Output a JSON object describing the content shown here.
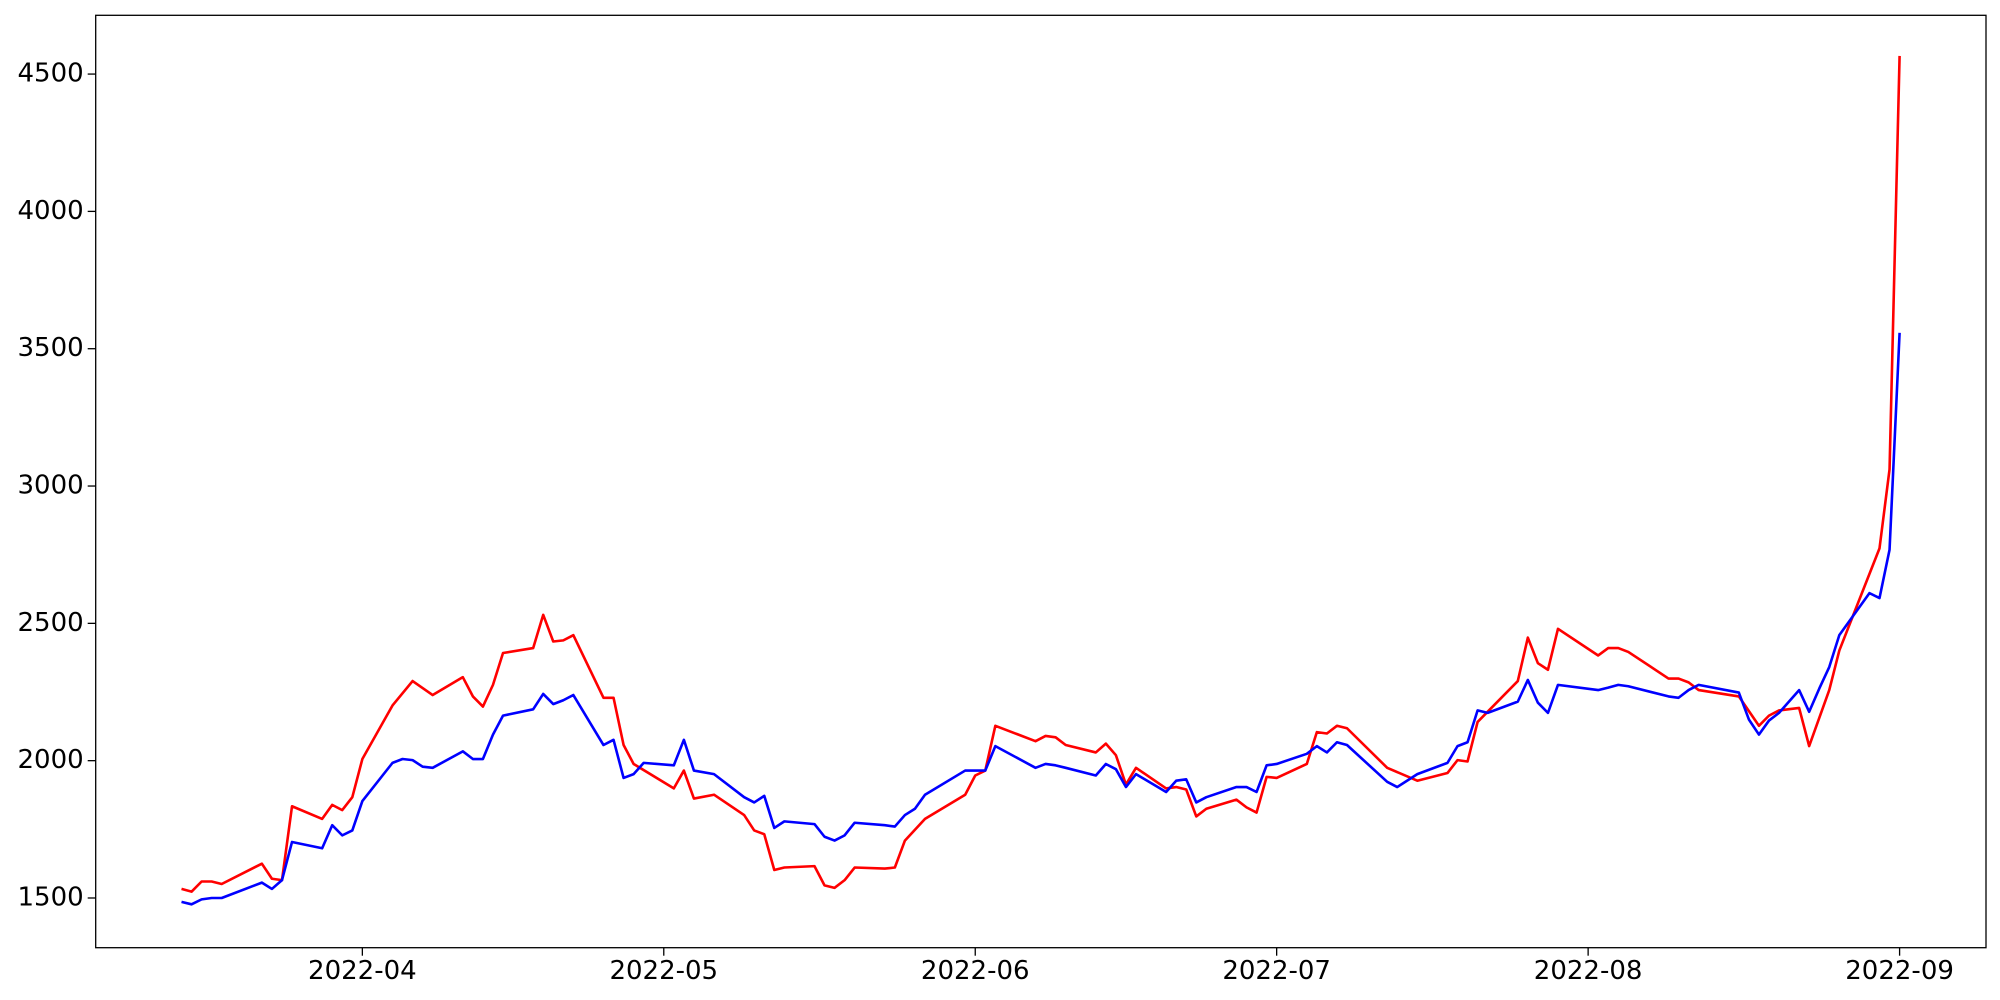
{
  "chart_data": {
    "type": "line",
    "xlim": [
      63.46,
      251.6
    ],
    "ylim": [
      1319,
      4714
    ],
    "xticks": [
      {
        "value": 90,
        "label": "2022-04"
      },
      {
        "value": 120,
        "label": "2022-05"
      },
      {
        "value": 151,
        "label": "2022-06"
      },
      {
        "value": 181,
        "label": "2022-07"
      },
      {
        "value": 212,
        "label": "2022-08"
      },
      {
        "value": 243,
        "label": "2022-09"
      }
    ],
    "yticks": [
      1500,
      2000,
      2500,
      3000,
      3500,
      4000,
      4500
    ],
    "series": [
      {
        "color": "#ff0000",
        "x": [
          72,
          73,
          74,
          75,
          76,
          80,
          81,
          82,
          83,
          86,
          87,
          88,
          89,
          90,
          93,
          95,
          97,
          100,
          101,
          102,
          103,
          104,
          107,
          108,
          109,
          110,
          111,
          114,
          115,
          116,
          117,
          121,
          122,
          123,
          125,
          128,
          129,
          130,
          131,
          132,
          135,
          136,
          137,
          138,
          139,
          142,
          143,
          144,
          146,
          150,
          151,
          152,
          153,
          157,
          158,
          159,
          160,
          163,
          164,
          165,
          166,
          167,
          170,
          171,
          172,
          173,
          174,
          177,
          178,
          179,
          180,
          181,
          184,
          185,
          186,
          187,
          188,
          192,
          195,
          198,
          199,
          200,
          201,
          205,
          206,
          207,
          208,
          209,
          213,
          214,
          215,
          216,
          220,
          221,
          222,
          223,
          227,
          229,
          230,
          231,
          233,
          234,
          236,
          237,
          241,
          242,
          243
        ],
        "values": [
          1533,
          1523,
          1560,
          1560,
          1551,
          1625,
          1570,
          1565,
          1834,
          1788,
          1839,
          1820,
          1867,
          2006,
          2201,
          2290,
          2239,
          2304,
          2234,
          2197,
          2276,
          2392,
          2410,
          2531,
          2434,
          2438,
          2457,
          2229,
          2229,
          2057,
          1988,
          1899,
          1964,
          1862,
          1876,
          1802,
          1746,
          1732,
          1602,
          1611,
          1616,
          1546,
          1537,
          1565,
          1611,
          1607,
          1611,
          1709,
          1788,
          1876,
          1946,
          1964,
          2127,
          2071,
          2090,
          2085,
          2057,
          2030,
          2062,
          2020,
          1913,
          1974,
          1899,
          1904,
          1895,
          1797,
          1825,
          1858,
          1830,
          1811,
          1941,
          1937,
          1988,
          2104,
          2099,
          2127,
          2118,
          1974,
          1927,
          1955,
          2002,
          1997,
          2141,
          2290,
          2448,
          2355,
          2331,
          2480,
          2383,
          2410,
          2410,
          2396,
          2299,
          2299,
          2285,
          2257,
          2234,
          2127,
          2164,
          2183,
          2192,
          2053,
          2257,
          2401,
          2773,
          3061,
          4566
        ]
      },
      {
        "color": "#0000ff",
        "x": [
          72,
          73,
          74,
          75,
          76,
          79,
          80,
          81,
          82,
          83,
          86,
          87,
          88,
          89,
          90,
          93,
          94,
          95,
          96,
          97,
          100,
          101,
          102,
          103,
          104,
          107,
          108,
          109,
          110,
          111,
          114,
          115,
          116,
          117,
          118,
          121,
          122,
          123,
          125,
          128,
          129,
          130,
          131,
          132,
          135,
          136,
          137,
          138,
          139,
          142,
          143,
          144,
          145,
          146,
          150,
          151,
          152,
          153,
          157,
          158,
          159,
          160,
          163,
          164,
          165,
          166,
          167,
          170,
          171,
          172,
          173,
          174,
          177,
          178,
          179,
          180,
          181,
          184,
          185,
          186,
          187,
          188,
          192,
          193,
          195,
          198,
          199,
          200,
          201,
          202,
          205,
          206,
          207,
          208,
          209,
          213,
          214,
          215,
          216,
          220,
          221,
          222,
          223,
          227,
          228,
          229,
          230,
          231,
          233,
          234,
          235,
          236,
          237,
          240,
          241,
          242,
          243
        ],
        "values": [
          1486,
          1477,
          1495,
          1500,
          1500,
          1542,
          1556,
          1533,
          1565,
          1704,
          1681,
          1765,
          1728,
          1746,
          1853,
          1992,
          2006,
          2002,
          1978,
          1974,
          2034,
          2006,
          2006,
          2095,
          2164,
          2187,
          2243,
          2206,
          2220,
          2239,
          2057,
          2076,
          1937,
          1951,
          1992,
          1983,
          2076,
          1964,
          1951,
          1867,
          1848,
          1872,
          1755,
          1779,
          1769,
          1723,
          1709,
          1728,
          1774,
          1765,
          1760,
          1802,
          1825,
          1876,
          1964,
          1964,
          1964,
          2053,
          1974,
          1988,
          1983,
          1974,
          1946,
          1988,
          1969,
          1904,
          1951,
          1886,
          1927,
          1932,
          1848,
          1867,
          1904,
          1904,
          1886,
          1983,
          1988,
          2025,
          2053,
          2030,
          2067,
          2057,
          1923,
          1904,
          1951,
          1992,
          2053,
          2067,
          2183,
          2174,
          2215,
          2294,
          2211,
          2174,
          2276,
          2257,
          2266,
          2276,
          2271,
          2234,
          2229,
          2257,
          2276,
          2248,
          2150,
          2095,
          2146,
          2174,
          2257,
          2178,
          2262,
          2341,
          2457,
          2610,
          2592,
          2768,
          3558
        ]
      }
    ]
  }
}
